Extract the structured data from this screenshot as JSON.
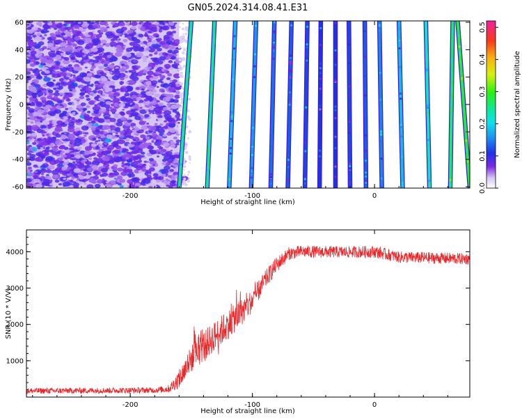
{
  "title": "GN05.2024.314.08.41.E31",
  "chart_data": [
    {
      "type": "heatmap",
      "xlabel": "Height of straight line (km)",
      "ylabel": "Frequency (Hz)",
      "xlim": [
        -285,
        78
      ],
      "ylim": [
        -61,
        61
      ],
      "x_ticks": [
        -200,
        -100,
        0
      ],
      "y_ticks": [
        -60,
        -40,
        -20,
        0,
        20,
        40,
        60
      ],
      "colorbar": {
        "label": "Normalized spectral amplitude",
        "range": [
          0,
          0.52
        ],
        "ticks": [
          0.0,
          0.1,
          0.2,
          0.3,
          0.4,
          0.5
        ],
        "tick_labels": [
          "0.0",
          "0.1",
          "0.2",
          "0.3",
          "0.4",
          "0.5"
        ]
      },
      "noise_region": {
        "x_from": -285,
        "x_to": -160,
        "amplitude": 0.07
      },
      "stripes": [
        {
          "x_top": -150,
          "x_bottom": -160,
          "amplitude": 0.24
        },
        {
          "x_top": -131,
          "x_bottom": -137,
          "amplitude": 0.24
        },
        {
          "x_top": -114,
          "x_bottom": -119,
          "amplitude": 0.18
        },
        {
          "x_top": -97,
          "x_bottom": -101,
          "amplitude": 0.16
        },
        {
          "x_top": -82,
          "x_bottom": -85,
          "amplitude": 0.14
        },
        {
          "x_top": -68,
          "x_bottom": -71,
          "amplitude": 0.13
        },
        {
          "x_top": -55,
          "x_bottom": -57,
          "amplitude": 0.12
        },
        {
          "x_top": -44,
          "x_bottom": -45,
          "amplitude": 0.11
        },
        {
          "x_top": -32,
          "x_bottom": -32,
          "amplitude": 0.11
        },
        {
          "x_top": -21,
          "x_bottom": -20,
          "amplitude": 0.12
        },
        {
          "x_top": -8,
          "x_bottom": -7,
          "amplitude": 0.13
        },
        {
          "x_top": 4,
          "x_bottom": 6,
          "amplitude": 0.15
        },
        {
          "x_top": 20,
          "x_bottom": 23,
          "amplitude": 0.18
        },
        {
          "x_top": 42,
          "x_bottom": 45,
          "amplitude": 0.22
        },
        {
          "x_top": 64,
          "x_bottom": 62,
          "amplitude": 0.26
        },
        {
          "x_top": 68,
          "x_bottom": 78,
          "amplitude": 0.28
        }
      ]
    },
    {
      "type": "line",
      "xlabel": "Height of straight line (km)",
      "ylabel": "SNR (10 * V/V)",
      "xlim": [
        -285,
        78
      ],
      "ylim": [
        0,
        4600
      ],
      "x_ticks": [
        -200,
        -100,
        0
      ],
      "y_ticks": [
        1000,
        2000,
        3000,
        4000
      ],
      "color": "#e8282b",
      "profile": [
        {
          "x": -285,
          "y": 170,
          "noise": 80
        },
        {
          "x": -180,
          "y": 190,
          "noise": 80
        },
        {
          "x": -168,
          "y": 230,
          "noise": 110
        },
        {
          "x": -160,
          "y": 500,
          "noise": 260
        },
        {
          "x": -150,
          "y": 1050,
          "noise": 380
        },
        {
          "x": -140,
          "y": 1400,
          "noise": 420
        },
        {
          "x": -125,
          "y": 1850,
          "noise": 420
        },
        {
          "x": -110,
          "y": 2300,
          "noise": 380
        },
        {
          "x": -100,
          "y": 2650,
          "noise": 320
        },
        {
          "x": -90,
          "y": 3200,
          "noise": 260
        },
        {
          "x": -80,
          "y": 3650,
          "noise": 220
        },
        {
          "x": -70,
          "y": 3950,
          "noise": 180
        },
        {
          "x": -60,
          "y": 4000,
          "noise": 170
        },
        {
          "x": -20,
          "y": 3990,
          "noise": 160
        },
        {
          "x": 0,
          "y": 4000,
          "noise": 170
        },
        {
          "x": 20,
          "y": 3850,
          "noise": 160
        },
        {
          "x": 78,
          "y": 3800,
          "noise": 160
        }
      ]
    }
  ]
}
